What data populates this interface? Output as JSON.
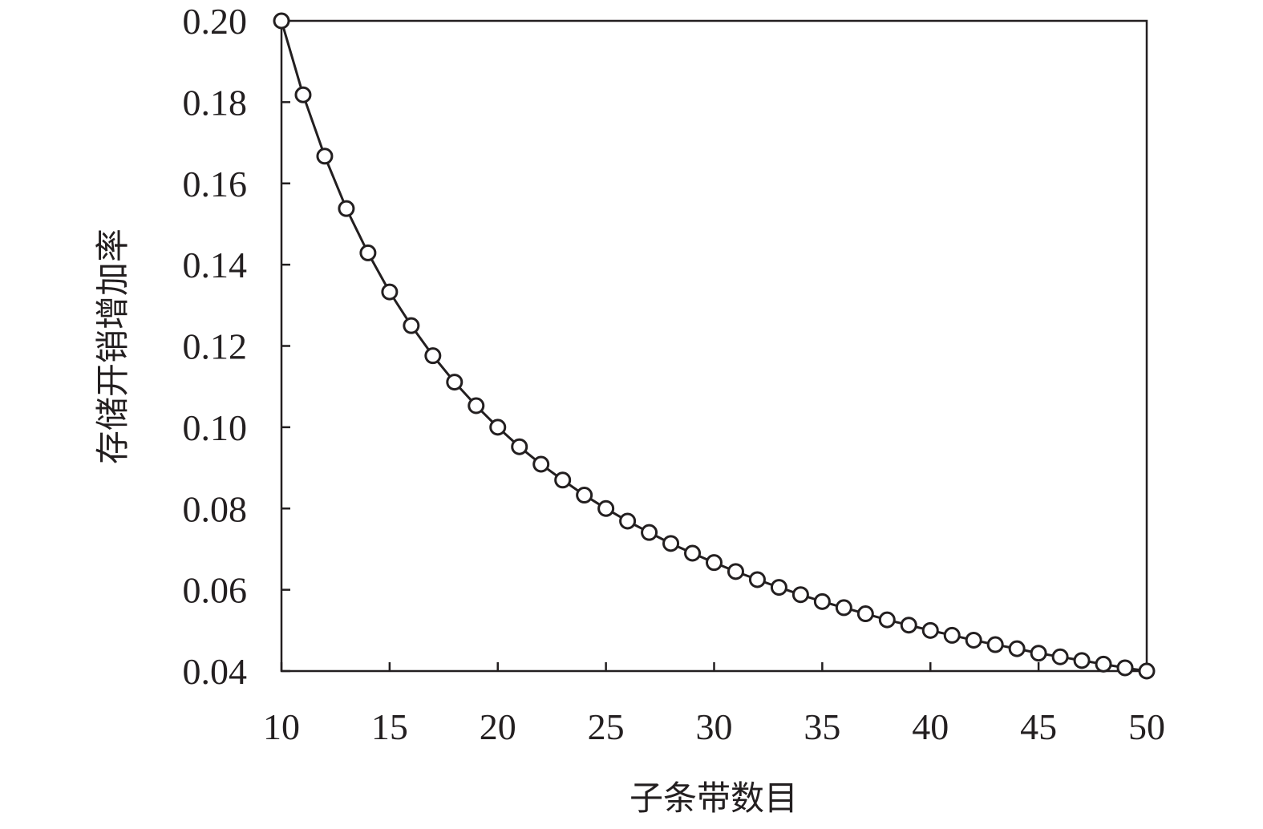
{
  "chart_data": {
    "type": "line",
    "title": "",
    "xlabel": "子条带数目",
    "ylabel": "存储开销增加率",
    "xlim": [
      10,
      50
    ],
    "ylim": [
      0.04,
      0.2
    ],
    "x_ticks": [
      "10",
      "15",
      "20",
      "25",
      "30",
      "35",
      "40",
      "45",
      "50"
    ],
    "y_ticks": [
      "0.04",
      "0.06",
      "0.08",
      "0.10",
      "0.12",
      "0.14",
      "0.16",
      "0.18",
      "0.20"
    ],
    "grid": false,
    "legend": "none",
    "marker": "open-circle",
    "line_color": "#231f20",
    "series": [
      {
        "x": [
          10,
          11,
          12,
          13,
          14,
          15,
          16,
          17,
          18,
          19,
          20,
          21,
          22,
          23,
          24,
          25,
          26,
          27,
          28,
          29,
          30,
          31,
          32,
          33,
          34,
          35,
          36,
          37,
          38,
          39,
          40,
          41,
          42,
          43,
          44,
          45,
          46,
          47,
          48,
          49,
          50
        ],
        "values": [
          0.2,
          0.1818,
          0.1667,
          0.1538,
          0.1429,
          0.1333,
          0.125,
          0.1176,
          0.1111,
          0.1053,
          0.1,
          0.0952,
          0.0909,
          0.087,
          0.0833,
          0.08,
          0.0769,
          0.0741,
          0.0714,
          0.069,
          0.0667,
          0.0645,
          0.0625,
          0.0606,
          0.0588,
          0.0571,
          0.0556,
          0.0541,
          0.0526,
          0.0513,
          0.05,
          0.0488,
          0.0476,
          0.0465,
          0.0455,
          0.0444,
          0.0435,
          0.0426,
          0.0417,
          0.0408,
          0.04
        ]
      }
    ]
  }
}
